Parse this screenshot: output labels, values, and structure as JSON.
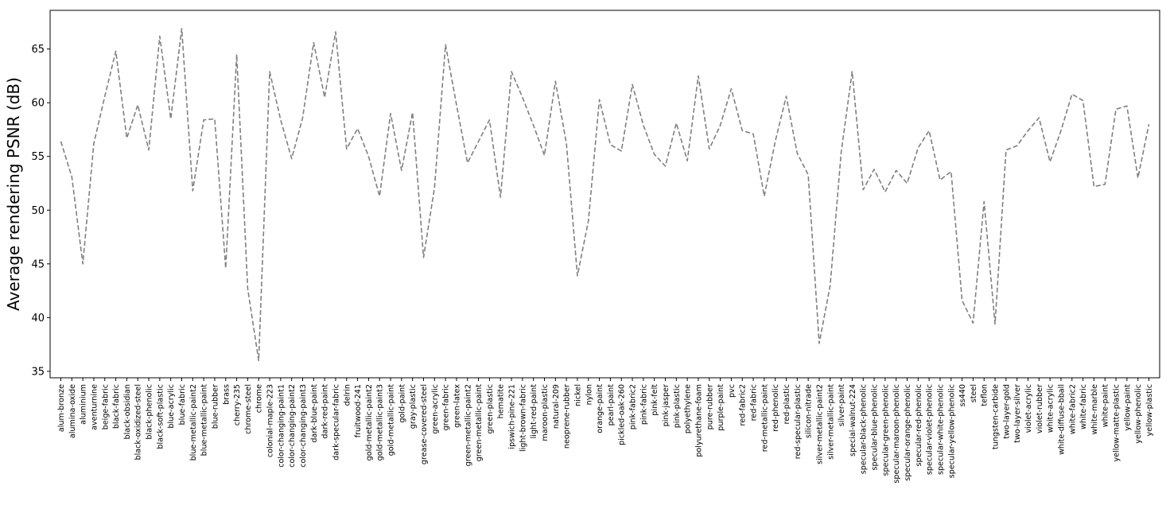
{
  "chart_data": {
    "type": "line",
    "title": "",
    "xlabel": "",
    "ylabel": "Average rendering PSNR (dB)",
    "ylim": [
      34.4,
      68.6
    ],
    "yticks": [
      35,
      40,
      45,
      50,
      55,
      60,
      65
    ],
    "grid": false,
    "legend": "none",
    "line_color": "#808080",
    "line_style": "dashed",
    "categories": [
      "alum-bronze",
      "alumina-oxide",
      "aluminium",
      "aventurnine",
      "beige-fabric",
      "black-fabric",
      "black-obsidian",
      "black-oxidized-steel",
      "black-phenolic",
      "black-soft-plastic",
      "blue-acrylic",
      "blue-fabric",
      "blue-metallic-paint2",
      "blue-metallic-paint",
      "blue-rubber",
      "brass",
      "cherry-235",
      "chrome-steel",
      "chrome",
      "colonial-maple-223",
      "color-changing-paint1",
      "color-changing-paint2",
      "color-changing-paint3",
      "dark-blue-paint",
      "dark-red-paint",
      "dark-specular-fabric",
      "delrin",
      "fruitwood-241",
      "gold-metallic-paint2",
      "gold-metallic-paint3",
      "gold-metallic-paint",
      "gold-paint",
      "gray-plastic",
      "grease-covered-steel",
      "green-acrylic",
      "green-fabric",
      "green-latex",
      "green-metallic-paint2",
      "green-metallic-paint",
      "green-plastic",
      "hematite",
      "ipswich-pine-221",
      "light-brown-fabric",
      "light-red-paint",
      "maroon-plastic",
      "natural-209",
      "neoprene-rubber",
      "nickel",
      "nylon",
      "orange-paint",
      "pearl-paint",
      "pickled-oak-260",
      "pink-fabric2",
      "pink-fabric",
      "pink-felt",
      "pink-jasper",
      "pink-plastic",
      "polyethylene",
      "polyurethane-foam",
      "pure-rubber",
      "purple-paint",
      "pvc",
      "red-fabric2",
      "red-fabric",
      "red-metallic-paint",
      "red-phenolic",
      "red-plastic",
      "red-specular-plastic",
      "silicon-nitrade",
      "silver-metallic-paint2",
      "silver-metallic-paint",
      "silver-paint",
      "special-walnut-224",
      "specular-black-phenolic",
      "specular-blue-phenolic",
      "specular-green-phenolic",
      "specular-maroon-phenolic",
      "specular-orange-phenolic",
      "specular-red-phenolic",
      "specular-violet-phenolic",
      "specular-white-phenolic",
      "specular-yellow-phenolic",
      "ss440",
      "steel",
      "teflon",
      "tungsten-carbide",
      "two-layer-gold",
      "two-layer-silver",
      "violet-acrylic",
      "violet-rubber",
      "white-acrylic",
      "white-diffuse-bball",
      "white-fabric2",
      "white-fabric",
      "white-marble",
      "white-paint",
      "yellow-matte-plastic",
      "yellow-paint",
      "yellow-phenolic",
      "yellow-plastic"
    ],
    "values": [
      56.4,
      53.1,
      45.0,
      56.2,
      60.6,
      64.8,
      56.7,
      59.8,
      55.6,
      66.2,
      58.5,
      66.9,
      51.8,
      58.4,
      58.5,
      44.6,
      64.5,
      42.7,
      36.0,
      62.9,
      58.4,
      54.8,
      58.6,
      65.6,
      60.5,
      66.6,
      55.7,
      57.6,
      55.0,
      51.3,
      59.0,
      53.7,
      59.1,
      45.6,
      52.1,
      65.4,
      59.8,
      54.4,
      56.4,
      58.4,
      51.2,
      62.9,
      60.5,
      57.9,
      55.1,
      62.0,
      56.2,
      43.9,
      49.0,
      60.3,
      56.1,
      55.5,
      61.7,
      57.9,
      55.2,
      54.1,
      58.1,
      54.6,
      62.5,
      55.7,
      57.9,
      61.3,
      57.4,
      57.1,
      51.3,
      56.4,
      60.6,
      55.3,
      53.3,
      37.6,
      43.0,
      55.4,
      62.9,
      51.9,
      53.8,
      51.7,
      53.7,
      52.5,
      55.8,
      57.4,
      52.8,
      53.6,
      41.6,
      39.5,
      50.8,
      39.4,
      55.6,
      56.0,
      57.4,
      58.6,
      54.5,
      57.4,
      60.8,
      60.2,
      52.2,
      52.4,
      59.4,
      59.7,
      53.0,
      58.0
    ]
  }
}
